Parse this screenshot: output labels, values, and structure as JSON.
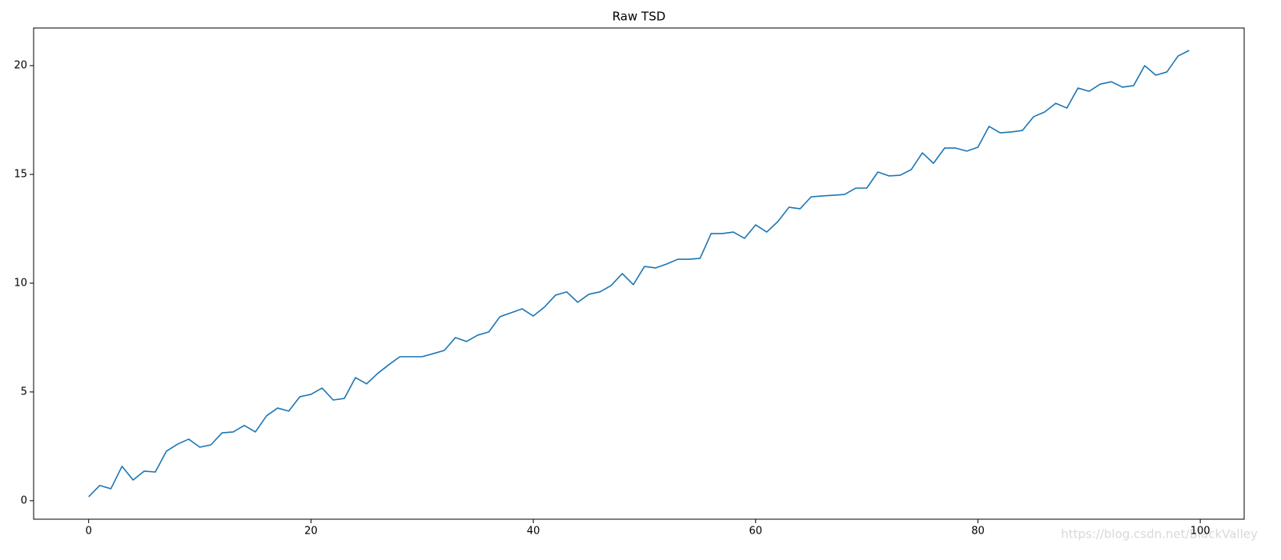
{
  "chart_data": {
    "type": "line",
    "title": "Raw TSD",
    "x": [
      0,
      1,
      2,
      3,
      4,
      5,
      6,
      7,
      8,
      9,
      10,
      11,
      12,
      13,
      14,
      15,
      16,
      17,
      18,
      19,
      20,
      21,
      22,
      23,
      24,
      25,
      26,
      27,
      28,
      29,
      30,
      31,
      32,
      33,
      34,
      35,
      36,
      37,
      38,
      39,
      40,
      41,
      42,
      43,
      44,
      45,
      46,
      47,
      48,
      49,
      50,
      51,
      52,
      53,
      54,
      55,
      56,
      57,
      58,
      59,
      60,
      61,
      62,
      63,
      64,
      65,
      66,
      67,
      68,
      69,
      70,
      71,
      72,
      73,
      74,
      75,
      76,
      77,
      78,
      79,
      80,
      81,
      82,
      83,
      84,
      85,
      86,
      87,
      88,
      89,
      90,
      91,
      92,
      93,
      94,
      95,
      96,
      97,
      98,
      99
    ],
    "series": [
      {
        "color": "#1f77b4",
        "values": [
          0.18,
          0.7,
          0.55,
          1.58,
          0.95,
          1.36,
          1.32,
          2.28,
          2.6,
          2.83,
          2.46,
          2.57,
          3.12,
          3.16,
          3.46,
          3.16,
          3.9,
          4.26,
          4.12,
          4.78,
          4.89,
          5.18,
          4.63,
          4.7,
          5.66,
          5.37,
          5.85,
          6.25,
          6.62,
          6.62,
          6.62,
          6.76,
          6.91,
          7.5,
          7.32,
          7.61,
          7.76,
          8.46,
          8.64,
          8.82,
          8.49,
          8.9,
          9.45,
          9.6,
          9.12,
          9.49,
          9.6,
          9.89,
          10.44,
          9.93,
          10.77,
          10.7,
          10.88,
          11.1,
          11.1,
          11.14,
          12.28,
          12.28,
          12.35,
          12.06,
          12.68,
          12.35,
          12.83,
          13.49,
          13.42,
          13.97,
          14.01,
          14.04,
          14.08,
          14.37,
          14.37,
          15.11,
          14.93,
          14.96,
          15.22,
          15.99,
          15.51,
          16.21,
          16.21,
          16.07,
          16.25,
          17.21,
          16.91,
          16.95,
          17.02,
          17.65,
          17.87,
          18.27,
          18.05,
          18.97,
          18.82,
          19.15,
          19.26,
          19.01,
          19.08,
          20.0,
          19.56,
          19.71,
          20.44,
          20.7
        ]
      }
    ],
    "xlim": [
      -4.95,
      103.95
    ],
    "ylim": [
      -0.85,
      21.73
    ],
    "xticks": [
      0,
      20,
      40,
      60,
      80,
      100
    ],
    "yticks": [
      0,
      5,
      10,
      15,
      20
    ],
    "grid": false,
    "watermark": "https://blog.csdn.net/BlackValley"
  }
}
